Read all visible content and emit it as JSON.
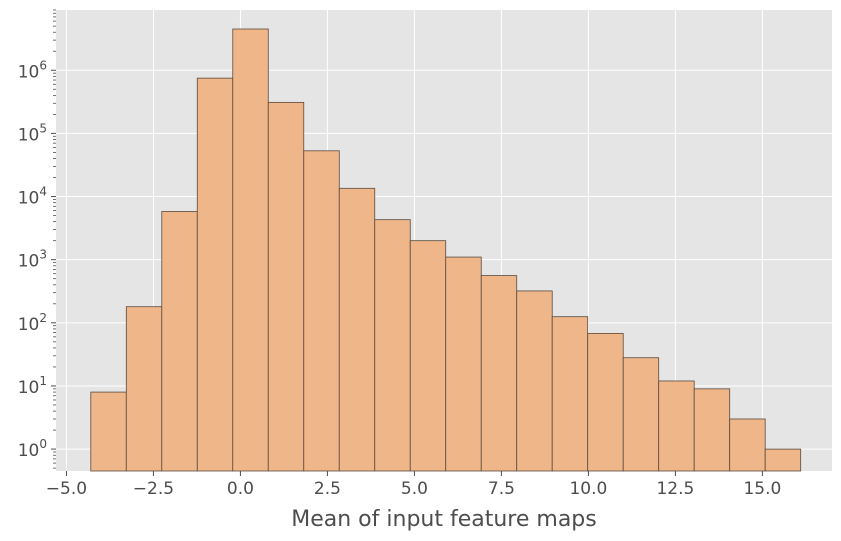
{
  "chart_data": {
    "type": "bar",
    "subtype": "histogram",
    "title": "",
    "xlabel": "Mean of input feature maps",
    "ylabel": "",
    "yscale": "log",
    "xlim": [
      -5.3,
      17.0
    ],
    "ylim": [
      0.45,
      9000000
    ],
    "grid": true,
    "legend": "none",
    "colors": {
      "bar_fill": "#efb689",
      "bar_edge": "#5a4a3e",
      "plot_background": "#e5e5e5",
      "grid": "#ffffff",
      "text": "#4d4d4d"
    },
    "bin_edges": [
      -4.3,
      -3.28,
      -2.26,
      -1.24,
      -0.22,
      0.8,
      1.82,
      2.84,
      3.86,
      4.88,
      5.9,
      6.92,
      7.94,
      8.96,
      9.98,
      11.0,
      12.02,
      13.04,
      14.06,
      15.08,
      16.1
    ],
    "values": [
      8,
      180,
      5800,
      750000,
      4500000,
      310000,
      53000,
      13500,
      4300,
      2000,
      1100,
      560,
      320,
      125,
      68,
      28,
      12,
      9,
      3,
      1
    ],
    "x_ticks": [
      "−5.0",
      "−2.5",
      "0.0",
      "2.5",
      "5.0",
      "7.5",
      "10.0",
      "12.5",
      "15.0"
    ],
    "x_tick_values": [
      -5,
      -2.5,
      0,
      2.5,
      5,
      7.5,
      10,
      12.5,
      15
    ],
    "y_ticks": [
      {
        "base": "10",
        "exp": "0"
      },
      {
        "base": "10",
        "exp": "1"
      },
      {
        "base": "10",
        "exp": "2"
      },
      {
        "base": "10",
        "exp": "3"
      },
      {
        "base": "10",
        "exp": "4"
      },
      {
        "base": "10",
        "exp": "5"
      },
      {
        "base": "10",
        "exp": "6"
      }
    ],
    "y_tick_values": [
      1,
      10,
      100,
      1000,
      10000,
      100000,
      1000000
    ]
  }
}
